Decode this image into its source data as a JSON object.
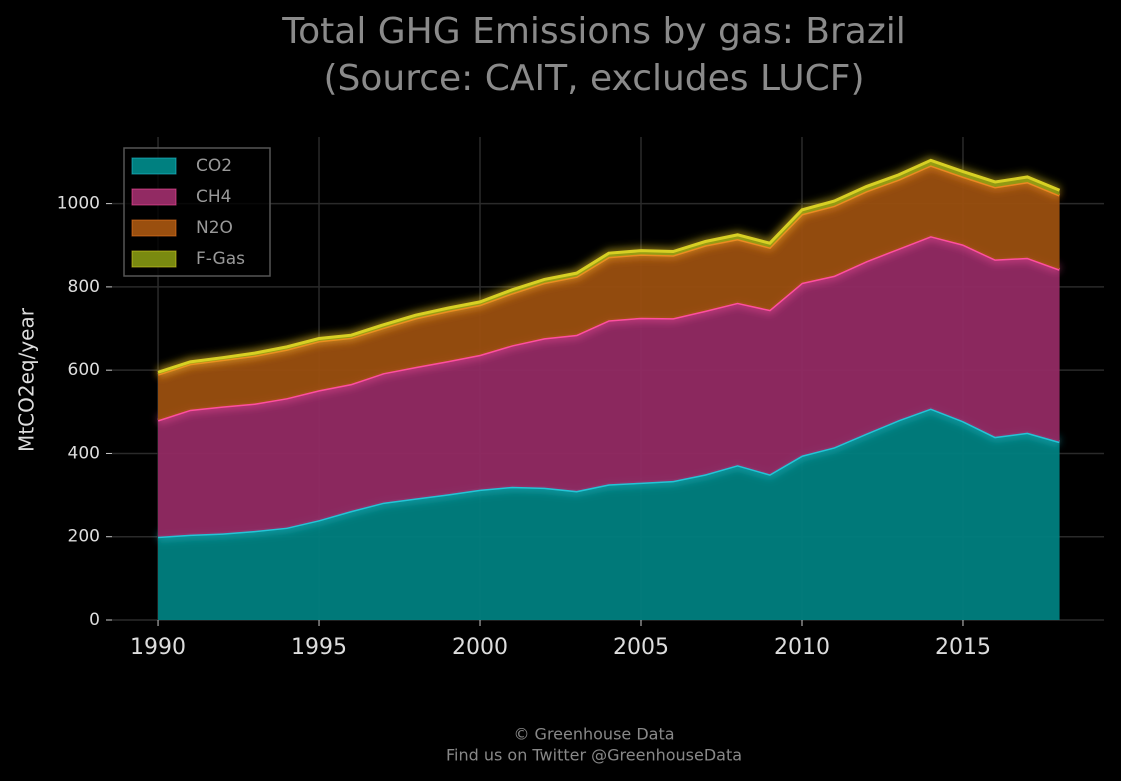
{
  "chart_data": {
    "type": "stacked_area",
    "title": "Total GHG Emissions by gas: Brazil",
    "subtitle": "(Source: CAIT, excludes LUCF)",
    "y_label": "MtCO2eq/year",
    "footer": [
      "© Greenhouse Data",
      "Find us on Twitter @GreenhouseData"
    ],
    "x": [
      1990,
      1991,
      1992,
      1993,
      1994,
      1995,
      1996,
      1997,
      1998,
      1999,
      2000,
      2001,
      2002,
      2003,
      2004,
      2005,
      2006,
      2007,
      2008,
      2009,
      2010,
      2011,
      2012,
      2013,
      2014,
      2015,
      2016,
      2017,
      2018
    ],
    "series": [
      {
        "name": "CO2",
        "color": "#008080",
        "line_color": "#25c4d6",
        "values": [
          200,
          205,
          208,
          214,
          222,
          240,
          262,
          282,
          292,
          302,
          313,
          320,
          318,
          310,
          326,
          330,
          334,
          350,
          372,
          350,
          395,
          415,
          448,
          480,
          508,
          478,
          440,
          450,
          428
        ]
      },
      {
        "name": "CH4",
        "color": "#922a63",
        "line_color": "#ff4fa0",
        "values": [
          280,
          300,
          305,
          306,
          311,
          312,
          305,
          311,
          316,
          320,
          324,
          340,
          359,
          375,
          394,
          396,
          391,
          393,
          390,
          395,
          415,
          412,
          414,
          412,
          414,
          424,
          426,
          420,
          414
        ]
      },
      {
        "name": "N2O",
        "color": "#9a4f0f",
        "line_color": "#f07a20",
        "values": [
          110,
          110,
          112,
          115,
          117,
          118,
          111,
          109,
          117,
          120,
          120,
          125,
          133,
          140,
          152,
          152,
          151,
          157,
          153,
          150,
          165,
          168,
          168,
          166,
          170,
          163,
          174,
          182,
          178
        ]
      },
      {
        "name": "F-Gas",
        "color": "#7a8a10",
        "line_color": "#d8d024",
        "values": [
          5,
          5,
          5,
          6,
          6,
          6,
          6,
          7,
          7,
          7,
          7,
          8,
          8,
          8,
          9,
          9,
          9,
          9,
          10,
          10,
          10,
          11,
          11,
          11,
          12,
          12,
          12,
          12,
          12
        ]
      }
    ],
    "xlim": [
      1988.57,
      2019.38
    ],
    "ylim": [
      0,
      1160
    ],
    "xticks": [
      1990,
      1995,
      2000,
      2005,
      2010,
      2015
    ],
    "yticks": [
      0,
      200,
      400,
      600,
      800,
      1000
    ],
    "grid": true,
    "legend": "upper left"
  }
}
